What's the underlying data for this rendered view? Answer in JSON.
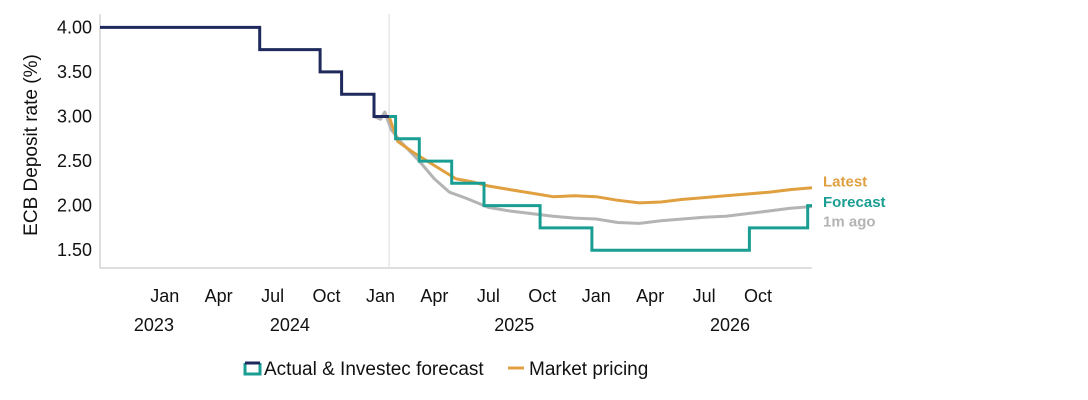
{
  "chart_data": {
    "type": "line",
    "ylabel": "ECB Deposit rate (%)",
    "ylim": [
      1.3,
      4.15
    ],
    "y_ticks": [
      "4.00",
      "3.50",
      "3.00",
      "2.50",
      "2.00",
      "1.50"
    ],
    "y_tick_values": [
      4.0,
      3.5,
      3.0,
      2.5,
      2.0,
      1.5
    ],
    "x_month_ticks": [
      {
        "label": "Jan",
        "date": 2024.0
      },
      {
        "label": "Apr",
        "date": 2024.25
      },
      {
        "label": "Jul",
        "date": 2024.5
      },
      {
        "label": "Oct",
        "date": 2024.75
      },
      {
        "label": "Jan",
        "date": 2025.0
      },
      {
        "label": "Apr",
        "date": 2025.25
      },
      {
        "label": "Jul",
        "date": 2025.5
      },
      {
        "label": "Oct",
        "date": 2025.75
      },
      {
        "label": "Jan",
        "date": 2026.0
      },
      {
        "label": "Apr",
        "date": 2026.25
      },
      {
        "label": "Jul",
        "date": 2026.5
      },
      {
        "label": "Oct",
        "date": 2026.75
      }
    ],
    "x_year_labels": [
      {
        "label": "2023",
        "date": 2023.95
      },
      {
        "label": "2024",
        "date": 2024.58
      },
      {
        "label": "2025",
        "date": 2025.62
      },
      {
        "label": "2026",
        "date": 2026.62
      }
    ],
    "xlim": [
      2023.7,
      2027.0
    ],
    "divider_date": 2025.04,
    "series": [
      {
        "name": "Actual",
        "color": "#1f2a5c",
        "step": true,
        "points": [
          [
            2023.7,
            4.0
          ],
          [
            2024.44,
            4.0
          ],
          [
            2024.44,
            3.75
          ],
          [
            2024.72,
            3.75
          ],
          [
            2024.72,
            3.5
          ],
          [
            2024.82,
            3.5
          ],
          [
            2024.82,
            3.25
          ],
          [
            2024.97,
            3.25
          ],
          [
            2024.97,
            3.0
          ],
          [
            2025.04,
            3.0
          ]
        ]
      },
      {
        "name": "Investec forecast",
        "color": "#1a9e93",
        "step": true,
        "points": [
          [
            2025.04,
            3.0
          ],
          [
            2025.07,
            3.0
          ],
          [
            2025.07,
            2.75
          ],
          [
            2025.18,
            2.75
          ],
          [
            2025.18,
            2.5
          ],
          [
            2025.33,
            2.5
          ],
          [
            2025.33,
            2.25
          ],
          [
            2025.48,
            2.25
          ],
          [
            2025.48,
            2.0
          ],
          [
            2025.74,
            2.0
          ],
          [
            2025.74,
            1.75
          ],
          [
            2025.98,
            1.75
          ],
          [
            2025.98,
            1.5
          ],
          [
            2026.71,
            1.5
          ],
          [
            2026.71,
            1.75
          ],
          [
            2026.98,
            1.75
          ],
          [
            2026.98,
            2.0
          ],
          [
            2027.0,
            2.0
          ]
        ]
      },
      {
        "name": "Market pricing (Latest)",
        "color": "#e0a040",
        "points": [
          [
            2025.04,
            3.0
          ],
          [
            2025.08,
            2.72
          ],
          [
            2025.15,
            2.6
          ],
          [
            2025.25,
            2.45
          ],
          [
            2025.35,
            2.3
          ],
          [
            2025.42,
            2.27
          ],
          [
            2025.5,
            2.22
          ],
          [
            2025.6,
            2.18
          ],
          [
            2025.7,
            2.14
          ],
          [
            2025.8,
            2.1
          ],
          [
            2025.9,
            2.11
          ],
          [
            2026.0,
            2.1
          ],
          [
            2026.1,
            2.06
          ],
          [
            2026.2,
            2.03
          ],
          [
            2026.3,
            2.04
          ],
          [
            2026.4,
            2.07
          ],
          [
            2026.5,
            2.09
          ],
          [
            2026.6,
            2.11
          ],
          [
            2026.7,
            2.13
          ],
          [
            2026.8,
            2.15
          ],
          [
            2026.9,
            2.18
          ],
          [
            2027.0,
            2.2
          ]
        ]
      },
      {
        "name": "Market pricing (1m ago)",
        "color": "#b4b4b4",
        "points": [
          [
            2024.97,
            3.0
          ],
          [
            2025.0,
            2.97
          ],
          [
            2025.02,
            3.05
          ],
          [
            2025.05,
            2.85
          ],
          [
            2025.1,
            2.7
          ],
          [
            2025.18,
            2.5
          ],
          [
            2025.25,
            2.3
          ],
          [
            2025.32,
            2.15
          ],
          [
            2025.4,
            2.08
          ],
          [
            2025.5,
            1.98
          ],
          [
            2025.6,
            1.94
          ],
          [
            2025.7,
            1.91
          ],
          [
            2025.8,
            1.88
          ],
          [
            2025.9,
            1.86
          ],
          [
            2026.0,
            1.85
          ],
          [
            2026.1,
            1.81
          ],
          [
            2026.2,
            1.8
          ],
          [
            2026.3,
            1.83
          ],
          [
            2026.4,
            1.85
          ],
          [
            2026.5,
            1.87
          ],
          [
            2026.6,
            1.88
          ],
          [
            2026.7,
            1.91
          ],
          [
            2026.8,
            1.94
          ],
          [
            2026.9,
            1.97
          ],
          [
            2027.0,
            1.99
          ]
        ]
      }
    ],
    "end_labels": [
      {
        "text": "Latest",
        "color": "#e0a040",
        "value": 2.27
      },
      {
        "text": "Forecast",
        "color": "#1a9e93",
        "value": 2.04
      },
      {
        "text": "1m ago",
        "color": "#b4b4b4",
        "value": 1.82
      }
    ],
    "legend": [
      {
        "label": "Actual & Investec forecast",
        "colors": [
          "#1f2a5c",
          "#1a9e93"
        ]
      },
      {
        "label": "Market pricing",
        "colors": [
          "#e0a040"
        ]
      }
    ]
  }
}
